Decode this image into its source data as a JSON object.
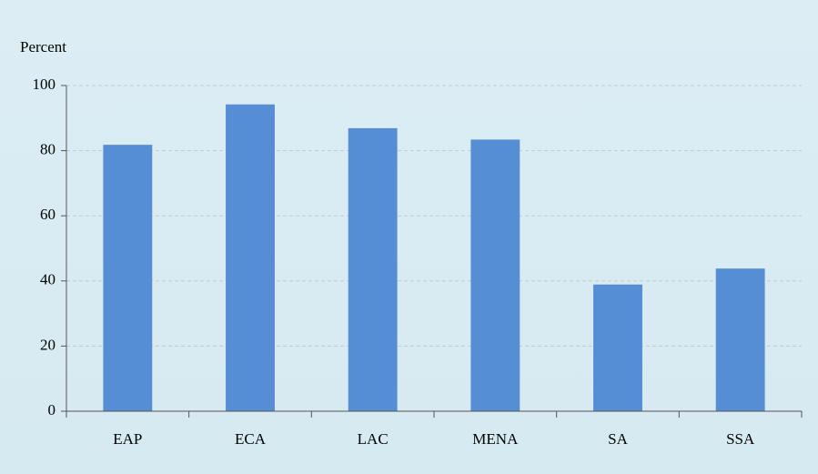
{
  "chart_data": {
    "type": "bar",
    "y_label": "Percent",
    "categories": [
      "EAP",
      "ECA",
      "LAC",
      "MENA",
      "SA",
      "SSA"
    ],
    "values": [
      81.8,
      94.2,
      86.9,
      83.4,
      38.9,
      43.8
    ],
    "color": "#558ed5",
    "ylim": [
      0,
      100
    ],
    "yticks": [
      0,
      20,
      40,
      60,
      80,
      100
    ],
    "grid": true
  }
}
